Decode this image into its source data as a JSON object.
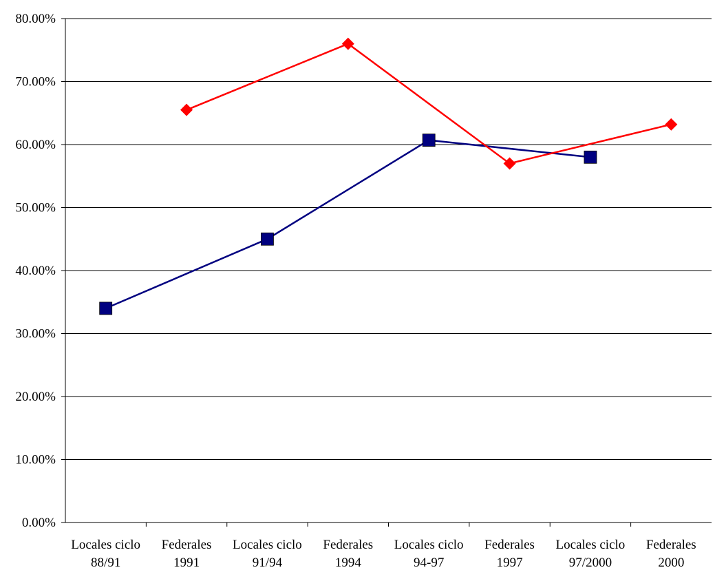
{
  "chart_data": {
    "type": "line",
    "categories": [
      [
        "Locales ciclo",
        "88/91"
      ],
      [
        "Federales",
        "1991"
      ],
      [
        "Locales ciclo",
        "91/94"
      ],
      [
        "Federales",
        "1994"
      ],
      [
        "Locales ciclo",
        "94-97"
      ],
      [
        "Federales",
        "1997"
      ],
      [
        "Locales ciclo",
        "97/2000"
      ],
      [
        "Federales",
        "2000"
      ]
    ],
    "y_tick_labels": [
      "0.00%",
      "10.00%",
      "20.00%",
      "30.00%",
      "40.00%",
      "50.00%",
      "60.00%",
      "70.00%",
      "80.00%"
    ],
    "ylim": [
      0,
      80
    ],
    "grid": true,
    "series": [
      {
        "marker": "square",
        "color": "#000080",
        "values": [
          34.0,
          null,
          45.0,
          null,
          60.7,
          null,
          58.0,
          null
        ]
      },
      {
        "marker": "diamond",
        "color": "#ff0000",
        "values": [
          null,
          65.5,
          null,
          76.0,
          null,
          57.0,
          null,
          63.2
        ]
      }
    ]
  }
}
